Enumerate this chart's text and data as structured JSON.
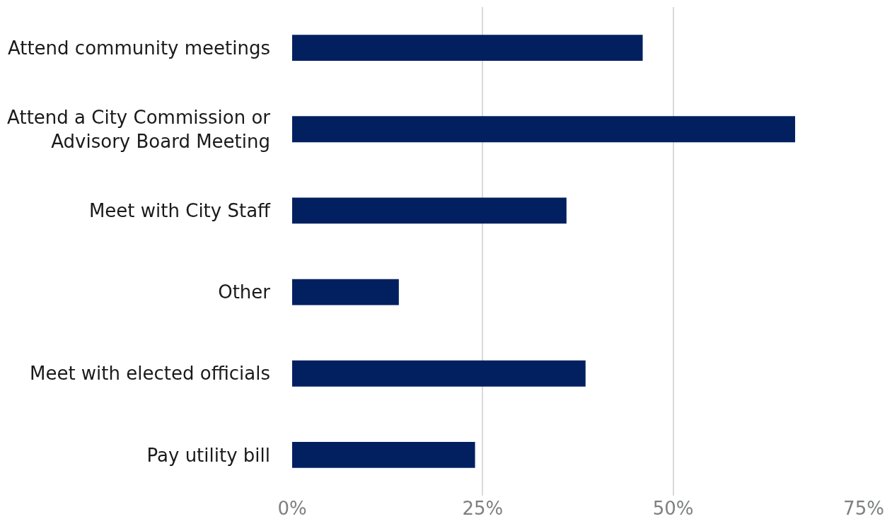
{
  "chart_data": {
    "type": "bar",
    "orientation": "horizontal",
    "categories": [
      "Attend community meetings",
      "Attend a City Commission or\nAdvisory Board Meeting",
      "Meet with City Staff",
      "Other",
      "Meet with elected officials",
      "Pay utility bill"
    ],
    "values": [
      46,
      66,
      36,
      14,
      38.5,
      24
    ],
    "color": "#02205f",
    "xlim": [
      0,
      75
    ],
    "xticks": [
      {
        "value": 0,
        "label": "0%"
      },
      {
        "value": 25,
        "label": "25%"
      },
      {
        "value": 50,
        "label": "50%"
      },
      {
        "value": 75,
        "label": "75%"
      }
    ],
    "grid": "x"
  }
}
